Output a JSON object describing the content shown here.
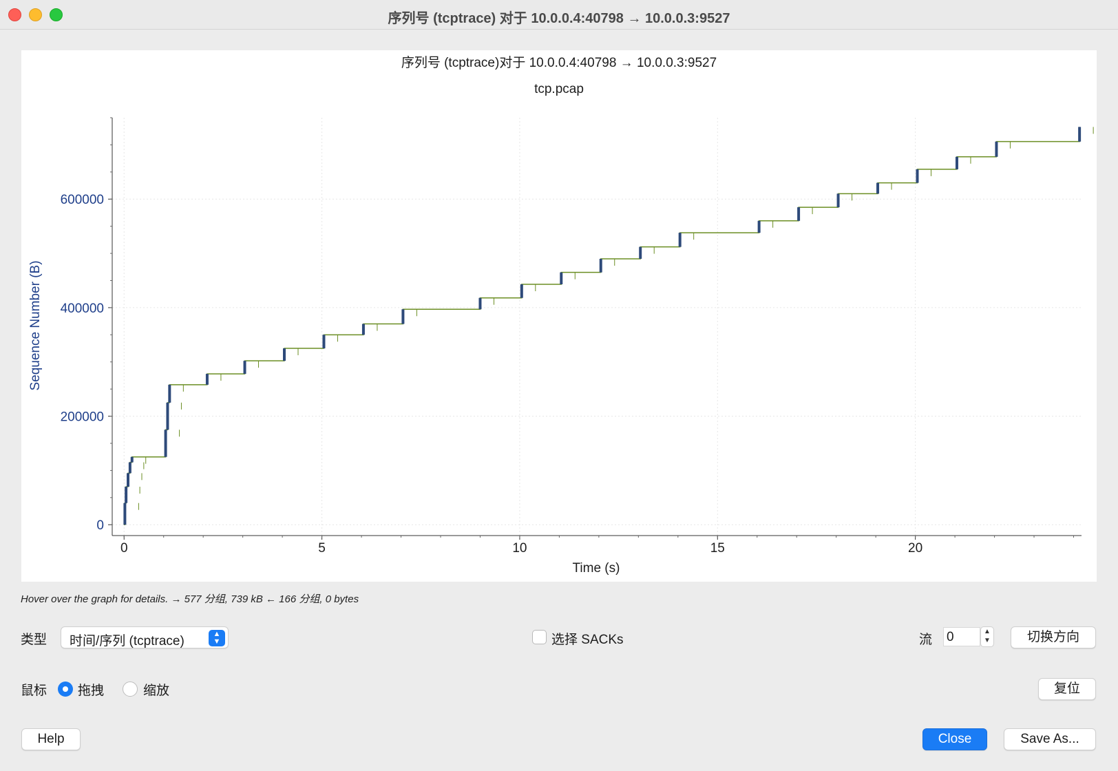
{
  "window": {
    "title": "序列号 (tcptrace) 对于 10.0.0.4:40798 → 10.0.0.3:9527"
  },
  "colors": {
    "accent": "#1a7cf5",
    "axis_label": "#1f3f8a",
    "trace": "#6b8e23",
    "segment": "#2e4a7a"
  },
  "chart_data": {
    "type": "line",
    "title": "序列号 (tcptrace)对于 10.0.0.4:40798 → 10.0.0.3:9527",
    "subtitle": "tcp.pcap",
    "xlabel": "Time (s)",
    "ylabel": "Sequence Number (B)",
    "xlim": [
      -0.3,
      24.2
    ],
    "ylim": [
      -20000,
      750000
    ],
    "x_ticks": [
      0,
      5,
      10,
      15,
      20
    ],
    "y_ticks": [
      0,
      200000,
      400000,
      600000
    ],
    "grid": true,
    "series": [
      {
        "x": [
          0.0,
          0.02,
          0.05,
          0.1,
          0.15,
          0.2,
          1.0,
          1.05,
          1.1,
          1.15,
          2.1,
          3.05,
          4.05,
          5.05,
          6.05,
          7.05,
          9.0,
          10.05,
          11.05,
          12.05,
          13.05,
          14.05,
          16.05,
          17.05,
          18.05,
          19.05,
          20.05,
          21.05,
          22.05,
          24.1,
          24.15
        ],
        "y": [
          0,
          40000,
          70000,
          95000,
          115000,
          125000,
          125000,
          175000,
          225000,
          258000,
          278000,
          302000,
          325000,
          350000,
          370000,
          397000,
          418000,
          443000,
          465000,
          490000,
          512000,
          538000,
          560000,
          585000,
          610000,
          630000,
          655000,
          678000,
          706000,
          706000,
          733000
        ]
      }
    ]
  },
  "status": {
    "hover_text": "Hover over the graph for details. → 577 分组, 739 kB ← 166 分组, 0 bytes"
  },
  "controls": {
    "type_label": "类型",
    "type_value": "时间/序列 (tcptrace)",
    "sacks_label": "选择 SACKs",
    "stream_label": "流",
    "stream_value": "0",
    "switch_direction": "切换方向",
    "mouse_label": "鼠标",
    "mouse_drag": "拖拽",
    "mouse_zoom": "缩放",
    "reset": "复位",
    "help": "Help",
    "close": "Close",
    "save_as": "Save As..."
  }
}
